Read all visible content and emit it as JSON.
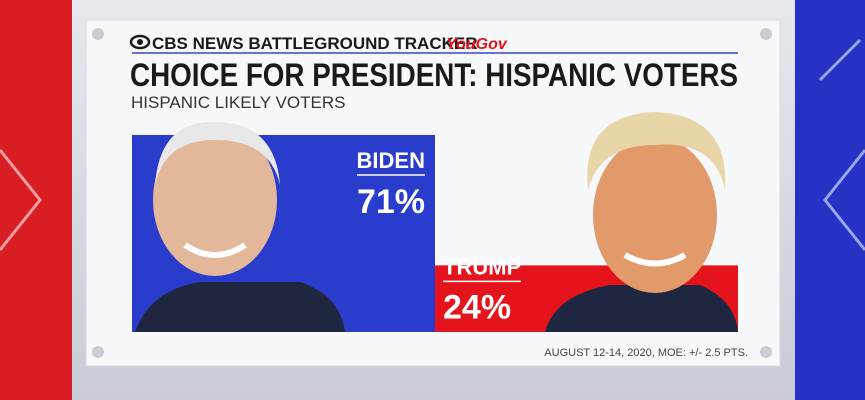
{
  "chart_data": {
    "type": "bar",
    "brand": "CBS NEWS BATTLEGROUND TRACKER",
    "partner": "YouGov",
    "title": "CHOICE FOR PRESIDENT: HISPANIC VOTERS",
    "subtitle": "HISPANIC LIKELY VOTERS",
    "categories": [
      "BIDEN",
      "TRUMP"
    ],
    "values": [
      71,
      24
    ],
    "value_labels": [
      "71%",
      "24%"
    ],
    "colors": [
      "#2a3ccc",
      "#e5141c"
    ],
    "note": "AUGUST 12-14, 2020, MOE: +/- 2.5 PTS."
  }
}
